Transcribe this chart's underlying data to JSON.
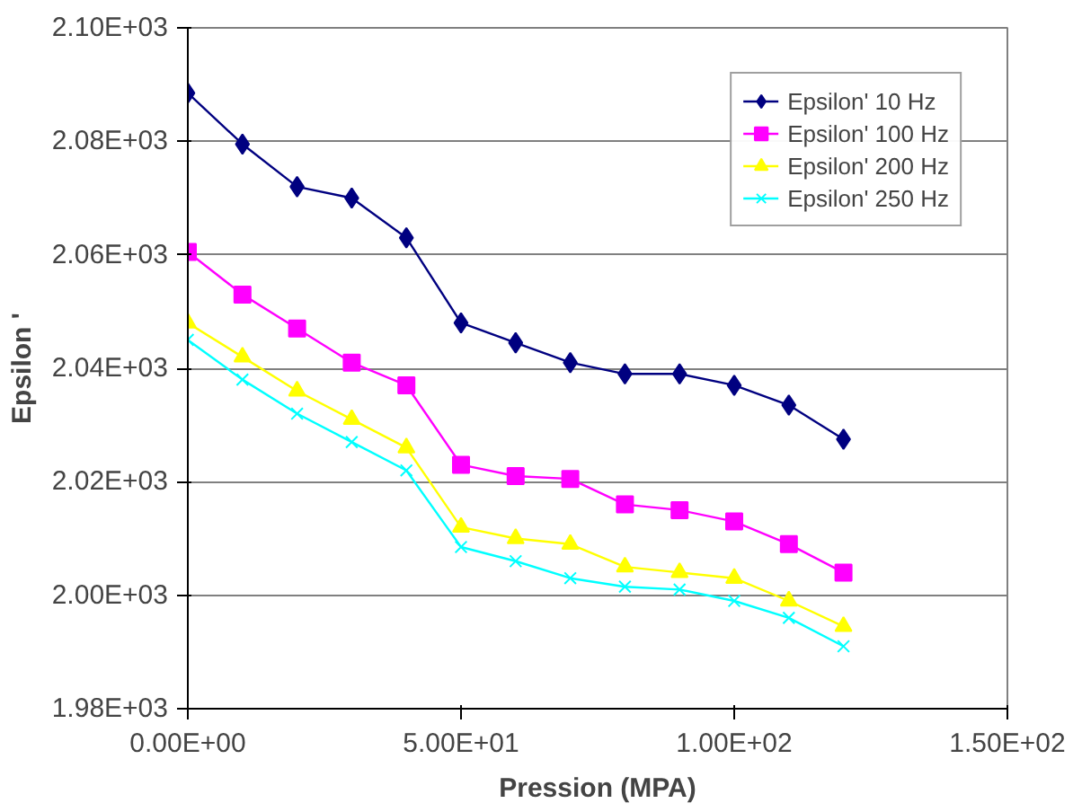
{
  "chart_data": {
    "type": "line",
    "xlabel": "Pression (MPA)",
    "ylabel": "Epsilon '",
    "x": [
      0,
      10,
      20,
      30,
      40,
      50,
      60,
      70,
      80,
      90,
      100,
      110,
      120
    ],
    "series": [
      {
        "name": "Epsilon' 10 Hz",
        "color": "#000080",
        "marker": "diamond",
        "values": [
          2088.5,
          2079.5,
          2072,
          2070,
          2063,
          2048,
          2044.5,
          2041,
          2039,
          2039,
          2037,
          2033.5,
          2027.5
        ]
      },
      {
        "name": "Epsilon' 100 Hz",
        "color": "#ff00ff",
        "marker": "square",
        "values": [
          2060.5,
          2053,
          2047,
          2041,
          2037,
          2023,
          2021,
          2020.5,
          2016,
          2015,
          2013,
          2009,
          2004
        ]
      },
      {
        "name": "Epsilon' 200 Hz",
        "color": "#ffff00",
        "marker": "triangle",
        "values": [
          2048,
          2042,
          2036,
          2031,
          2026,
          2012,
          2010,
          2009,
          2005,
          2004,
          2003,
          1999,
          1994.5
        ]
      },
      {
        "name": "Epsilon' 250 Hz",
        "color": "#00ffff",
        "marker": "cross",
        "values": [
          2045,
          2038,
          2032,
          2027,
          2022,
          2008.5,
          2006,
          2003,
          2001.5,
          2001,
          1999,
          1996,
          1991
        ]
      }
    ],
    "xlim": [
      0,
      150
    ],
    "xticks": [
      {
        "value": 0,
        "label": "0.00E+00"
      },
      {
        "value": 50,
        "label": "5.00E+01"
      },
      {
        "value": 100,
        "label": "1.00E+02"
      },
      {
        "value": 150,
        "label": "1.50E+02"
      }
    ],
    "ylim": [
      1980,
      2100
    ],
    "yticks": [
      {
        "value": 1980,
        "label": "1.98E+03"
      },
      {
        "value": 2000,
        "label": "2.00E+03"
      },
      {
        "value": 2020,
        "label": "2.02E+03"
      },
      {
        "value": 2040,
        "label": "2.04E+03"
      },
      {
        "value": 2060,
        "label": "2.06E+03"
      },
      {
        "value": 2080,
        "label": "2.08E+03"
      },
      {
        "value": 2100,
        "label": "2.10E+03"
      }
    ],
    "grid": "y",
    "legend": "top right",
    "line_style": "solid"
  }
}
